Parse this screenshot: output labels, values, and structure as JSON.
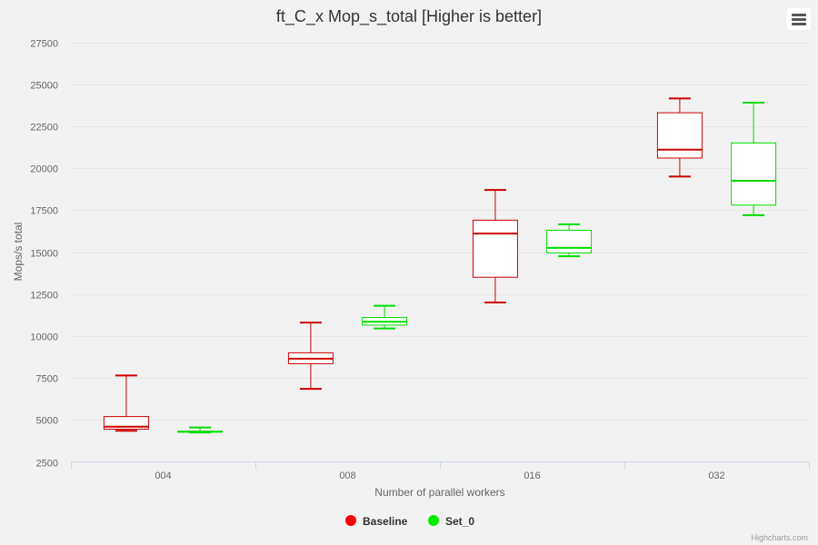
{
  "chart_data": {
    "type": "boxplot",
    "title": "ft_C_x Mop_s_total [Higher is better]",
    "xlabel": "Number of parallel workers",
    "ylabel": "Mops/s total",
    "categories": [
      "004",
      "008",
      "016",
      "032"
    ],
    "ylim": [
      2500,
      27500
    ],
    "yticks": [
      2500,
      5000,
      7500,
      10000,
      12500,
      15000,
      17500,
      20000,
      22500,
      25000,
      27500
    ],
    "grid": true,
    "legend_position": "bottom-center",
    "series": [
      {
        "name": "Baseline",
        "color": "#ff0000",
        "stroke": "#cc0000",
        "boxes": [
          {
            "low": 4350,
            "q1": 4450,
            "median": 4600,
            "q3": 5200,
            "high": 7650
          },
          {
            "low": 6850,
            "q1": 8350,
            "median": 8650,
            "q3": 9000,
            "high": 10800
          },
          {
            "low": 12000,
            "q1": 13500,
            "median": 16100,
            "q3": 16900,
            "high": 18700
          },
          {
            "low": 19500,
            "q1": 20600,
            "median": 21100,
            "q3": 23300,
            "high": 24150
          }
        ]
      },
      {
        "name": "Set_0",
        "color": "#00ee00",
        "stroke": "#00dd00",
        "boxes": [
          {
            "low": 4250,
            "q1": 4280,
            "median": 4300,
            "q3": 4330,
            "high": 4550
          },
          {
            "low": 10450,
            "q1": 10650,
            "median": 10850,
            "q3": 11100,
            "high": 11800
          },
          {
            "low": 14750,
            "q1": 14950,
            "median": 15250,
            "q3": 16300,
            "high": 16650
          },
          {
            "low": 17200,
            "q1": 17800,
            "median": 19250,
            "q3": 21500,
            "high": 23900
          }
        ]
      }
    ]
  },
  "credits": "Highcharts.com",
  "menu": {
    "icon": "hamburger-menu-icon"
  }
}
